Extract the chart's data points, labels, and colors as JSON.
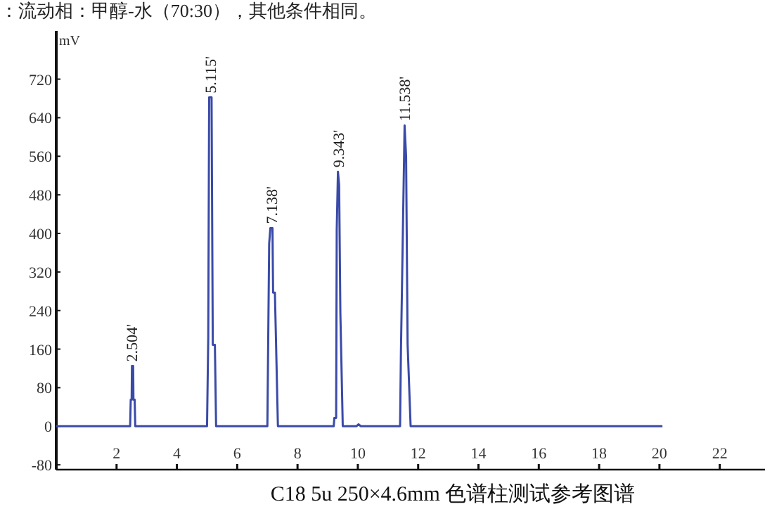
{
  "chart_data": {
    "type": "line",
    "title": "：流动相：甲醇-水（70:30），其他条件相同。",
    "ylabel": "mV",
    "xlim": [
      0,
      23.5
    ],
    "ylim": [
      -90,
      820
    ],
    "xticks": [
      2,
      4,
      6,
      8,
      10,
      12,
      14,
      16,
      18,
      20,
      22
    ],
    "yticks": [
      -80,
      0,
      80,
      160,
      240,
      320,
      400,
      480,
      560,
      640,
      720
    ],
    "grid": false,
    "marker": "none",
    "line_style": "solid",
    "series": [
      {
        "color": "#3a4aa8",
        "x": [
          0,
          2.45,
          2.47,
          2.5,
          2.51,
          2.55,
          2.56,
          2.6,
          2.62,
          5.0,
          5.04,
          5.07,
          5.15,
          5.19,
          5.26,
          5.3,
          7.0,
          7.06,
          7.1,
          7.17,
          7.19,
          7.25,
          7.35,
          9.2,
          9.22,
          9.28,
          9.3,
          9.34,
          9.38,
          9.42,
          9.5,
          9.95,
          10.02,
          10.1,
          11.4,
          11.43,
          11.5,
          11.55,
          11.6,
          11.65,
          11.75,
          20.1
        ],
        "values": [
          0,
          0,
          55,
          55,
          125,
          125,
          55,
          55,
          0,
          0,
          184,
          682,
          682,
          169,
          169,
          0,
          0,
          379,
          411,
          411,
          277,
          277,
          0,
          0,
          17,
          17,
          408,
          528,
          500,
          236,
          0,
          0,
          4,
          0,
          0,
          160,
          430,
          624,
          560,
          170,
          0,
          0
        ]
      }
    ],
    "annotations": [
      {
        "text": "2.504'",
        "x": 2.504,
        "y": 125
      },
      {
        "text": "5.115'",
        "x": 5.115,
        "y": 682
      },
      {
        "text": "7.138'",
        "x": 7.138,
        "y": 411
      },
      {
        "text": "9.343'",
        "x": 9.343,
        "y": 528
      },
      {
        "text": "11.538'",
        "x": 11.538,
        "y": 624
      },
      "C18 5u 250×4.6mm 色谱柱测试参考图谱"
    ]
  }
}
